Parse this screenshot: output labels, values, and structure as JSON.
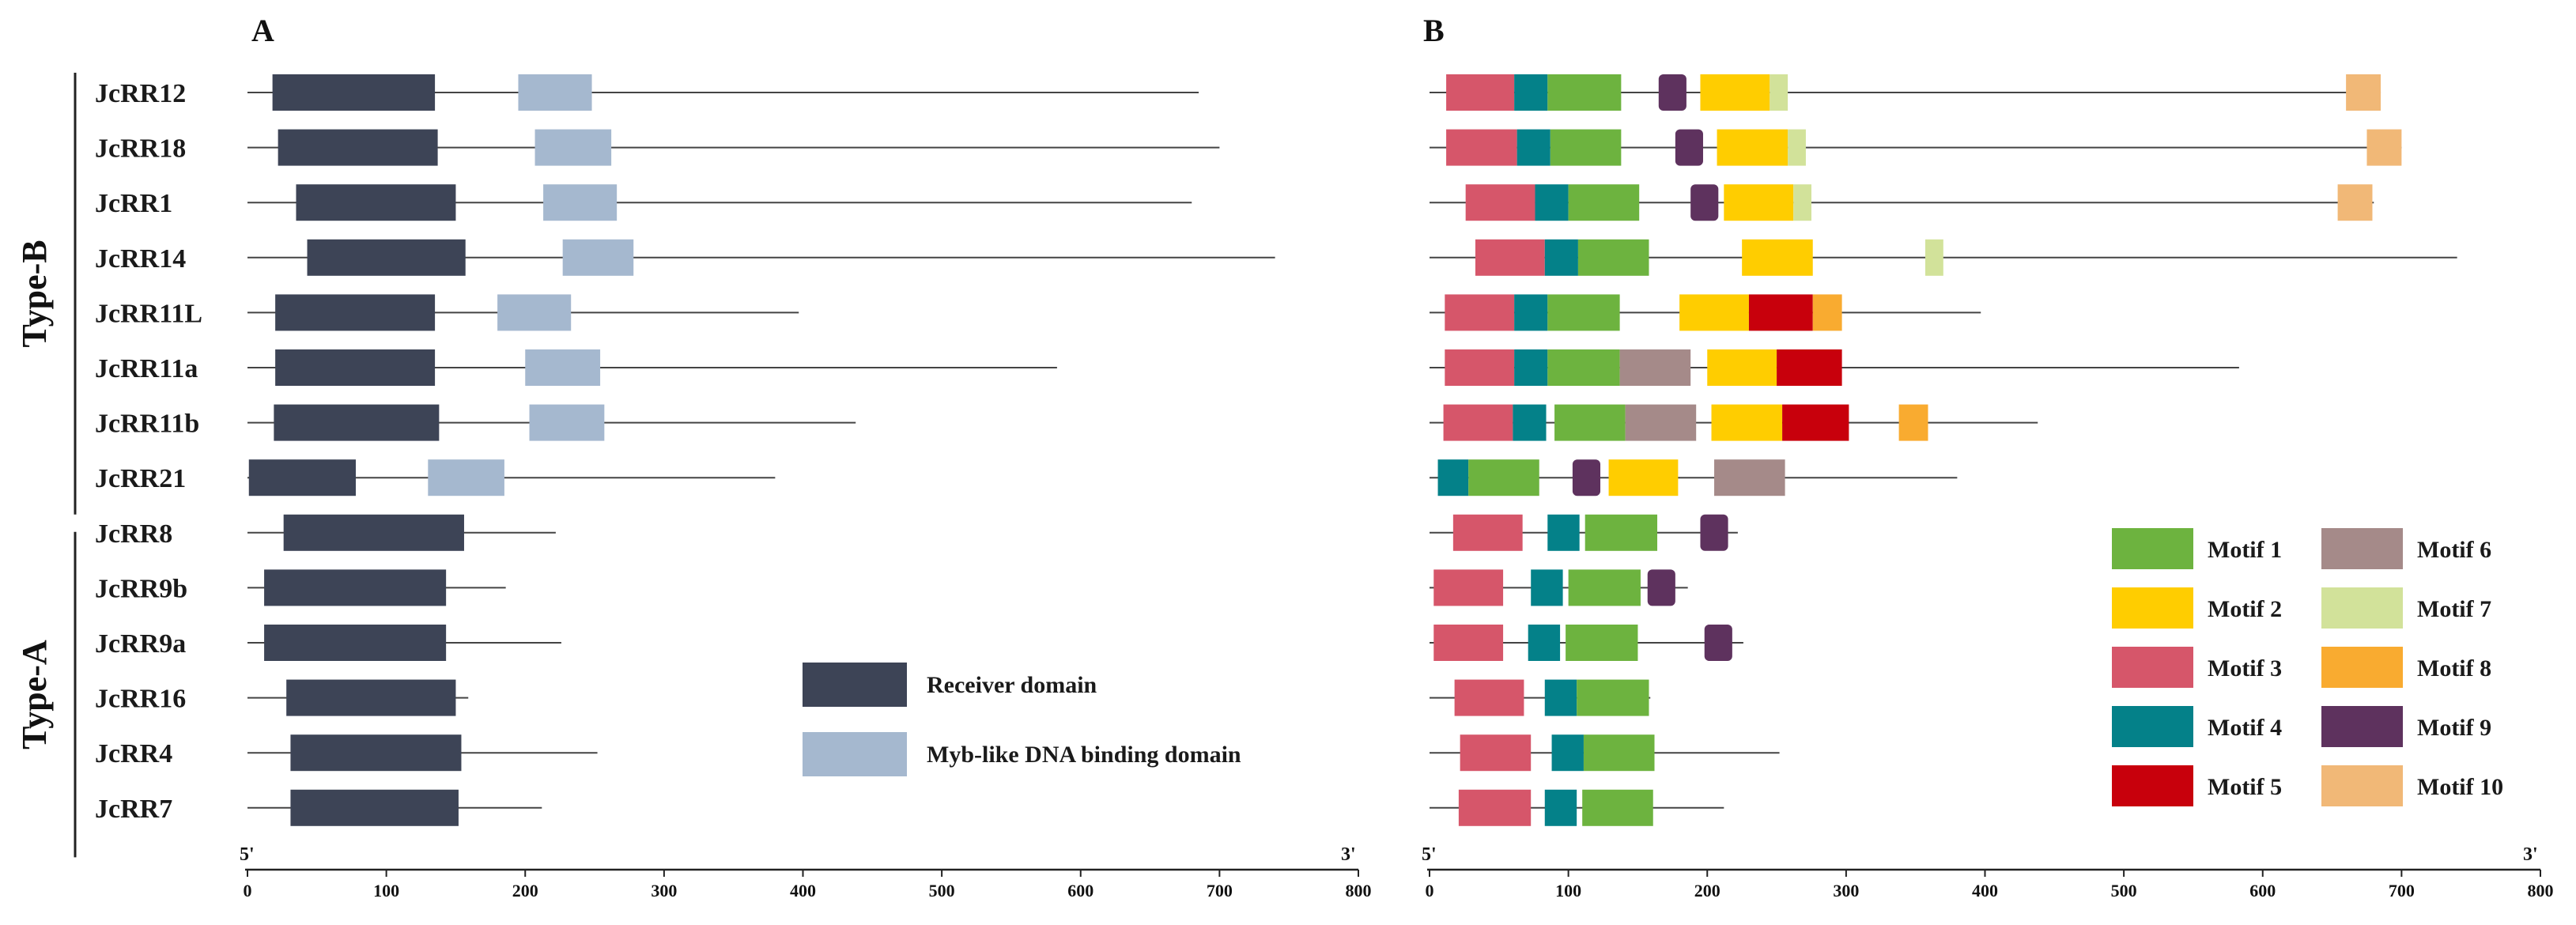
{
  "chart_data": {
    "type": "gene-structure",
    "title": "",
    "panels": [
      "A",
      "B"
    ],
    "groups": [
      {
        "name": "Type-B",
        "genes": [
          "JcRR12",
          "JcRR18",
          "JcRR1",
          "JcRR14",
          "JcRR11L",
          "JcRR11a",
          "JcRR11b",
          "JcRR21"
        ]
      },
      {
        "name": "Type-A",
        "genes": [
          "JcRR8",
          "JcRR9b",
          "JcRR9a",
          "JcRR16",
          "JcRR4",
          "JcRR7"
        ]
      }
    ],
    "axis": {
      "min": 0,
      "max": 800,
      "ticks": [
        0,
        100,
        200,
        300,
        400,
        500,
        600,
        700,
        800
      ],
      "left_end": "5'",
      "right_end": "3'"
    },
    "genes": [
      {
        "name": "JcRR12",
        "length": 685,
        "domains": [
          {
            "type": "receiver",
            "start": 18,
            "end": 135
          },
          {
            "type": "myb",
            "start": 195,
            "end": 248
          }
        ],
        "motifs": [
          {
            "id": 3,
            "start": 12,
            "end": 61
          },
          {
            "id": 4,
            "start": 61,
            "end": 85
          },
          {
            "id": 1,
            "start": 85,
            "end": 138
          },
          {
            "id": 9,
            "start": 165,
            "end": 185
          },
          {
            "id": 2,
            "start": 195,
            "end": 245
          },
          {
            "id": 7,
            "start": 245,
            "end": 258
          },
          {
            "id": 10,
            "start": 660,
            "end": 685
          }
        ]
      },
      {
        "name": "JcRR18",
        "length": 700,
        "domains": [
          {
            "type": "receiver",
            "start": 22,
            "end": 137
          },
          {
            "type": "myb",
            "start": 207,
            "end": 262
          }
        ],
        "motifs": [
          {
            "id": 3,
            "start": 12,
            "end": 63
          },
          {
            "id": 4,
            "start": 63,
            "end": 87
          },
          {
            "id": 1,
            "start": 87,
            "end": 138
          },
          {
            "id": 9,
            "start": 177,
            "end": 197
          },
          {
            "id": 2,
            "start": 207,
            "end": 258
          },
          {
            "id": 7,
            "start": 258,
            "end": 271
          },
          {
            "id": 10,
            "start": 675,
            "end": 700
          }
        ]
      },
      {
        "name": "JcRR1",
        "length": 680,
        "domains": [
          {
            "type": "receiver",
            "start": 35,
            "end": 150
          },
          {
            "type": "myb",
            "start": 213,
            "end": 266
          }
        ],
        "motifs": [
          {
            "id": 3,
            "start": 26,
            "end": 76
          },
          {
            "id": 4,
            "start": 76,
            "end": 100
          },
          {
            "id": 1,
            "start": 100,
            "end": 151
          },
          {
            "id": 9,
            "start": 188,
            "end": 208
          },
          {
            "id": 2,
            "start": 212,
            "end": 262
          },
          {
            "id": 7,
            "start": 262,
            "end": 275
          },
          {
            "id": 10,
            "start": 654,
            "end": 679
          }
        ]
      },
      {
        "name": "JcRR14",
        "length": 740,
        "domains": [
          {
            "type": "receiver",
            "start": 43,
            "end": 157
          },
          {
            "type": "myb",
            "start": 227,
            "end": 278
          }
        ],
        "motifs": [
          {
            "id": 3,
            "start": 33,
            "end": 83
          },
          {
            "id": 4,
            "start": 83,
            "end": 107
          },
          {
            "id": 1,
            "start": 107,
            "end": 158
          },
          {
            "id": 2,
            "start": 225,
            "end": 276
          },
          {
            "id": 7,
            "start": 357,
            "end": 370
          }
        ]
      },
      {
        "name": "JcRR11L",
        "length": 397,
        "domains": [
          {
            "type": "receiver",
            "start": 20,
            "end": 135
          },
          {
            "type": "myb",
            "start": 180,
            "end": 233
          }
        ],
        "motifs": [
          {
            "id": 3,
            "start": 11,
            "end": 61
          },
          {
            "id": 4,
            "start": 61,
            "end": 85
          },
          {
            "id": 1,
            "start": 85,
            "end": 137
          },
          {
            "id": 2,
            "start": 180,
            "end": 230
          },
          {
            "id": 5,
            "start": 230,
            "end": 276
          },
          {
            "id": 8,
            "start": 276,
            "end": 297
          }
        ]
      },
      {
        "name": "JcRR11a",
        "length": 583,
        "domains": [
          {
            "type": "receiver",
            "start": 20,
            "end": 135
          },
          {
            "type": "myb",
            "start": 200,
            "end": 254
          }
        ],
        "motifs": [
          {
            "id": 3,
            "start": 11,
            "end": 61
          },
          {
            "id": 4,
            "start": 61,
            "end": 85
          },
          {
            "id": 1,
            "start": 85,
            "end": 137
          },
          {
            "id": 6,
            "start": 137,
            "end": 188
          },
          {
            "id": 2,
            "start": 200,
            "end": 250
          },
          {
            "id": 5,
            "start": 250,
            "end": 297
          }
        ]
      },
      {
        "name": "JcRR11b",
        "length": 438,
        "domains": [
          {
            "type": "receiver",
            "start": 19,
            "end": 138
          },
          {
            "type": "myb",
            "start": 203,
            "end": 257
          }
        ],
        "motifs": [
          {
            "id": 3,
            "start": 10,
            "end": 60
          },
          {
            "id": 4,
            "start": 60,
            "end": 84
          },
          {
            "id": 1,
            "start": 90,
            "end": 141
          },
          {
            "id": 6,
            "start": 141,
            "end": 192
          },
          {
            "id": 2,
            "start": 203,
            "end": 254
          },
          {
            "id": 5,
            "start": 254,
            "end": 302
          },
          {
            "id": 8,
            "start": 338,
            "end": 359
          }
        ]
      },
      {
        "name": "JcRR21",
        "length": 380,
        "domains": [
          {
            "type": "receiver",
            "start": 1,
            "end": 78
          },
          {
            "type": "myb",
            "start": 130,
            "end": 185
          }
        ],
        "motifs": [
          {
            "id": 4,
            "start": 6,
            "end": 28
          },
          {
            "id": 1,
            "start": 28,
            "end": 79
          },
          {
            "id": 9,
            "start": 103,
            "end": 123
          },
          {
            "id": 2,
            "start": 129,
            "end": 179
          },
          {
            "id": 6,
            "start": 205,
            "end": 256
          }
        ]
      },
      {
        "name": "JcRR8",
        "length": 222,
        "domains": [
          {
            "type": "receiver",
            "start": 26,
            "end": 156
          }
        ],
        "motifs": [
          {
            "id": 3,
            "start": 17,
            "end": 67
          },
          {
            "id": 4,
            "start": 85,
            "end": 108
          },
          {
            "id": 1,
            "start": 112,
            "end": 164
          },
          {
            "id": 9,
            "start": 195,
            "end": 215
          }
        ]
      },
      {
        "name": "JcRR9b",
        "length": 186,
        "domains": [
          {
            "type": "receiver",
            "start": 12,
            "end": 143
          }
        ],
        "motifs": [
          {
            "id": 3,
            "start": 3,
            "end": 53
          },
          {
            "id": 4,
            "start": 73,
            "end": 96
          },
          {
            "id": 1,
            "start": 100,
            "end": 152
          },
          {
            "id": 9,
            "start": 157,
            "end": 177
          }
        ]
      },
      {
        "name": "JcRR9a",
        "length": 226,
        "domains": [
          {
            "type": "receiver",
            "start": 12,
            "end": 143
          }
        ],
        "motifs": [
          {
            "id": 3,
            "start": 3,
            "end": 53
          },
          {
            "id": 4,
            "start": 71,
            "end": 94
          },
          {
            "id": 1,
            "start": 98,
            "end": 150
          },
          {
            "id": 9,
            "start": 198,
            "end": 218
          }
        ]
      },
      {
        "name": "JcRR16",
        "length": 159,
        "domains": [
          {
            "type": "receiver",
            "start": 28,
            "end": 150
          }
        ],
        "motifs": [
          {
            "id": 3,
            "start": 18,
            "end": 68
          },
          {
            "id": 4,
            "start": 83,
            "end": 106
          },
          {
            "id": 1,
            "start": 106,
            "end": 158
          }
        ]
      },
      {
        "name": "JcRR4",
        "length": 252,
        "domains": [
          {
            "type": "receiver",
            "start": 31,
            "end": 154
          }
        ],
        "motifs": [
          {
            "id": 3,
            "start": 22,
            "end": 73
          },
          {
            "id": 4,
            "start": 88,
            "end": 111
          },
          {
            "id": 1,
            "start": 111,
            "end": 162
          }
        ]
      },
      {
        "name": "JcRR7",
        "length": 212,
        "domains": [
          {
            "type": "receiver",
            "start": 31,
            "end": 152
          }
        ],
        "motifs": [
          {
            "id": 3,
            "start": 21,
            "end": 73
          },
          {
            "id": 4,
            "start": 83,
            "end": 106
          },
          {
            "id": 1,
            "start": 110,
            "end": 161
          }
        ]
      }
    ],
    "domain_legend": [
      {
        "type": "receiver",
        "label": "Receiver domain",
        "color": "#3d4456"
      },
      {
        "type": "myb",
        "label": "Myb-like DNA binding domain",
        "color": "#a5b8cf"
      }
    ],
    "motif_legend": [
      {
        "id": 1,
        "label": "Motif 1",
        "color": "#6db33f"
      },
      {
        "id": 2,
        "label": "Motif 2",
        "color": "#ffcd00"
      },
      {
        "id": 3,
        "label": "Motif 3",
        "color": "#d6566a"
      },
      {
        "id": 4,
        "label": "Motif 4",
        "color": "#048189"
      },
      {
        "id": 5,
        "label": "Motif 5",
        "color": "#c8000c"
      },
      {
        "id": 6,
        "label": "Motif 6",
        "color": "#a58a89"
      },
      {
        "id": 7,
        "label": "Motif 7",
        "color": "#d2e29a"
      },
      {
        "id": 8,
        "label": "Motif 8",
        "color": "#f9ab30"
      },
      {
        "id": 9,
        "label": "Motif 9",
        "color": "#5e325e"
      },
      {
        "id": 10,
        "label": "Motif 10",
        "color": "#f1b877"
      }
    ]
  }
}
